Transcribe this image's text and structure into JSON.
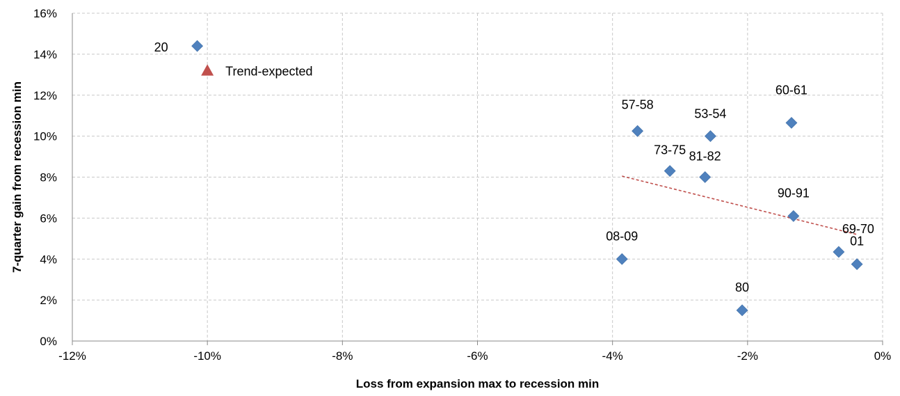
{
  "chart_data": {
    "type": "scatter",
    "title": "",
    "xlabel": "Loss from expansion max to recession min",
    "ylabel": "7-quarter gain from recession min",
    "xlim": [
      -12,
      0
    ],
    "ylim": [
      0,
      16
    ],
    "x_ticks": [
      {
        "value": -12,
        "label": "-12%"
      },
      {
        "value": -10,
        "label": "-10%"
      },
      {
        "value": -8,
        "label": "-8%"
      },
      {
        "value": -6,
        "label": "-6%"
      },
      {
        "value": -4,
        "label": "-4%"
      },
      {
        "value": -2,
        "label": "-2%"
      },
      {
        "value": 0,
        "label": "0%"
      }
    ],
    "y_ticks": [
      {
        "value": 0,
        "label": "0%"
      },
      {
        "value": 2,
        "label": "2%"
      },
      {
        "value": 4,
        "label": "4%"
      },
      {
        "value": 6,
        "label": "6%"
      },
      {
        "value": 8,
        "label": "8%"
      },
      {
        "value": 10,
        "label": "10%"
      },
      {
        "value": 12,
        "label": "12%"
      },
      {
        "value": 14,
        "label": "14%"
      },
      {
        "value": 16,
        "label": "16%"
      }
    ],
    "grid": true,
    "series": [
      {
        "type": "scatter",
        "color": "#4F81BD",
        "marker": "diamond",
        "points": [
          {
            "label": "20",
            "x": -10.15,
            "y": 14.4
          },
          {
            "label": "57-58",
            "x": -3.63,
            "y": 10.25
          },
          {
            "label": "53-54",
            "x": -2.55,
            "y": 10.0
          },
          {
            "label": "60-61",
            "x": -1.35,
            "y": 10.65
          },
          {
            "label": "73-75",
            "x": -3.15,
            "y": 8.3
          },
          {
            "label": "81-82",
            "x": -2.63,
            "y": 8.0
          },
          {
            "label": "90-91",
            "x": -1.32,
            "y": 6.1
          },
          {
            "label": "69-70",
            "x": -0.65,
            "y": 4.35
          },
          {
            "label": "01",
            "x": -0.38,
            "y": 3.75
          },
          {
            "label": "08-09",
            "x": -3.86,
            "y": 4.0
          },
          {
            "label": "80",
            "x": -2.08,
            "y": 1.5
          }
        ]
      },
      {
        "name": "Trend-expected",
        "type": "line",
        "color": "#C0504D",
        "dashed": true,
        "x": [
          -3.86,
          -0.38
        ],
        "y": [
          8.05,
          5.2
        ]
      }
    ],
    "legend": {
      "entries": [
        {
          "name": "Trend-expected",
          "marker": "triangle",
          "color": "#C0504D"
        }
      ],
      "placement": "top-left"
    }
  }
}
